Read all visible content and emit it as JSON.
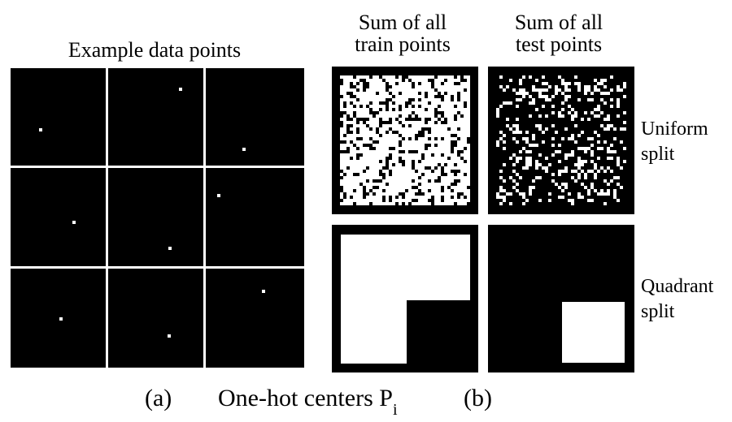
{
  "title": "Example data points",
  "train_title": [
    "Sum of all",
    "train points"
  ],
  "test_title": [
    "Sum of all",
    "test points"
  ],
  "row_labels": {
    "uniform": [
      "Uniform",
      "split"
    ],
    "quadrant": [
      "Quadrant",
      "split"
    ]
  },
  "captions": {
    "a": "(a)",
    "center": "One-hot centers P",
    "subscript": "i",
    "b": "(b)"
  },
  "colors": {
    "background": "#000000",
    "foreground": "#ffffff"
  },
  "example_points": [
    {
      "row": 0,
      "col": 0,
      "u": 0.32,
      "v": 0.63
    },
    {
      "row": 0,
      "col": 1,
      "u": 0.76,
      "v": 0.22
    },
    {
      "row": 0,
      "col": 2,
      "u": 0.39,
      "v": 0.83
    },
    {
      "row": 1,
      "col": 0,
      "u": 0.67,
      "v": 0.55
    },
    {
      "row": 1,
      "col": 1,
      "u": 0.65,
      "v": 0.82
    },
    {
      "row": 1,
      "col": 2,
      "u": 0.13,
      "v": 0.28
    },
    {
      "row": 2,
      "col": 0,
      "u": 0.53,
      "v": 0.51
    },
    {
      "row": 2,
      "col": 1,
      "u": 0.64,
      "v": 0.68
    },
    {
      "row": 2,
      "col": 2,
      "u": 0.59,
      "v": 0.23
    }
  ],
  "uniform_split": {
    "train_fill_fraction": 0.75,
    "test_fill_fraction": 0.25
  },
  "quadrant_split": {
    "train_region": "all quadrants except bottom-right",
    "test_region": "bottom-right quadrant"
  }
}
